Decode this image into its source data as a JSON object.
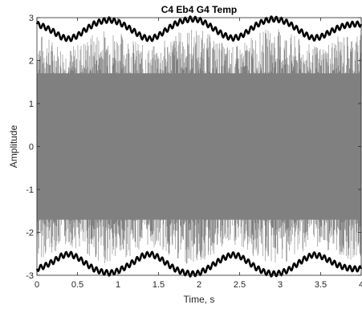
{
  "chart_data": {
    "type": "line",
    "title": "C4 Eb4 G4 Temp",
    "xlabel": "Time, s",
    "ylabel": "Amplitude",
    "xlim": [
      0,
      4
    ],
    "ylim": [
      -3,
      3
    ],
    "x_ticks": [
      0,
      0.5,
      1,
      1.5,
      2,
      2.5,
      3,
      3.5,
      4
    ],
    "x_tick_labels": [
      "0",
      "0.5",
      "1",
      "1.5",
      "2",
      "2.5",
      "3",
      "3.5",
      "4"
    ],
    "y_ticks": [
      -3,
      -2,
      -1,
      0,
      1,
      2,
      3
    ],
    "y_tick_labels": [
      "-3",
      "-2",
      "-1",
      "0",
      "1",
      "2",
      "3"
    ],
    "grid": false,
    "legend": "none",
    "series": [
      {
        "role": "signal",
        "color": "#808080",
        "description": "dense oscillating waveform filling roughly -2.7 to 2.7",
        "amplitude_peak": 2.75
      },
      {
        "role": "upper-envelope",
        "color": "#000000",
        "x": [
          0,
          0.1,
          0.2,
          0.3,
          0.4,
          0.5,
          0.6,
          0.7,
          0.8,
          0.9,
          1.0,
          1.1,
          1.2,
          1.3,
          1.4,
          1.5,
          1.6,
          1.7,
          1.8,
          1.9,
          2.0,
          2.1,
          2.2,
          2.3,
          2.4,
          2.5,
          2.6,
          2.7,
          2.8,
          2.9,
          3.0,
          3.1,
          3.2,
          3.3,
          3.4,
          3.5,
          3.6,
          3.7,
          3.8,
          3.9,
          4.0
        ],
        "values": [
          2.85,
          2.78,
          2.68,
          2.55,
          2.5,
          2.58,
          2.72,
          2.85,
          2.92,
          2.95,
          2.9,
          2.8,
          2.68,
          2.55,
          2.5,
          2.58,
          2.72,
          2.85,
          2.93,
          2.97,
          2.95,
          2.85,
          2.72,
          2.6,
          2.52,
          2.55,
          2.68,
          2.82,
          2.92,
          2.97,
          2.95,
          2.88,
          2.75,
          2.62,
          2.52,
          2.55,
          2.65,
          2.75,
          2.82,
          2.85,
          2.85
        ]
      },
      {
        "role": "lower-envelope",
        "color": "#000000",
        "x": [
          0,
          0.1,
          0.2,
          0.3,
          0.4,
          0.5,
          0.6,
          0.7,
          0.8,
          0.9,
          1.0,
          1.1,
          1.2,
          1.3,
          1.4,
          1.5,
          1.6,
          1.7,
          1.8,
          1.9,
          2.0,
          2.1,
          2.2,
          2.3,
          2.4,
          2.5,
          2.6,
          2.7,
          2.8,
          2.9,
          3.0,
          3.1,
          3.2,
          3.3,
          3.4,
          3.5,
          3.6,
          3.7,
          3.8,
          3.9,
          4.0
        ],
        "values": [
          -2.85,
          -2.78,
          -2.68,
          -2.55,
          -2.5,
          -2.58,
          -2.72,
          -2.85,
          -2.92,
          -2.95,
          -2.9,
          -2.8,
          -2.68,
          -2.55,
          -2.5,
          -2.58,
          -2.72,
          -2.85,
          -2.93,
          -2.97,
          -2.95,
          -2.85,
          -2.72,
          -2.6,
          -2.52,
          -2.55,
          -2.68,
          -2.82,
          -2.92,
          -2.97,
          -2.95,
          -2.88,
          -2.75,
          -2.62,
          -2.52,
          -2.55,
          -2.65,
          -2.75,
          -2.82,
          -2.85,
          -2.85
        ]
      }
    ]
  }
}
